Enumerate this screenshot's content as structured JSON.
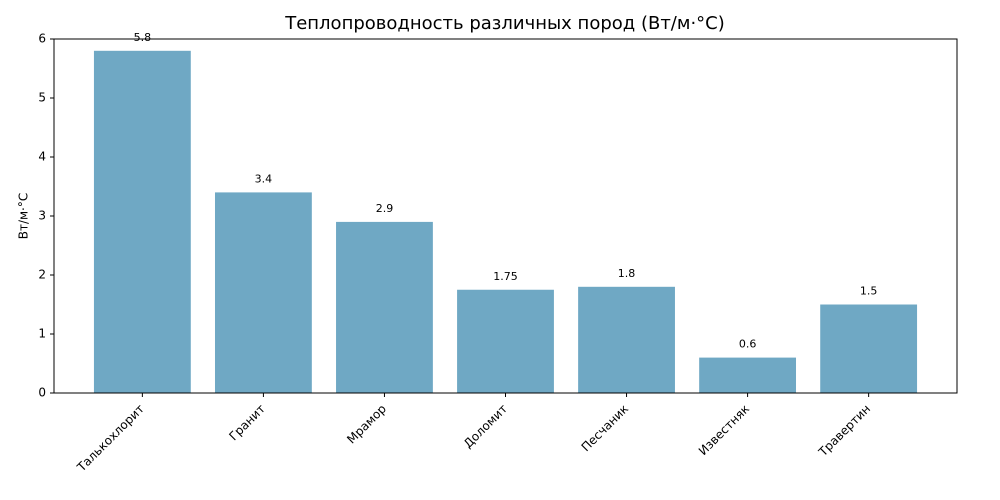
{
  "chart_data": {
    "type": "bar",
    "title": "Теплопроводность различных пород (Вт/м·°C)",
    "y_label": "Вт/м·°C",
    "categories": [
      "Талькохлорит",
      "Гранит",
      "Мрамор",
      "Доломит",
      "Песчаник",
      "Известняк",
      "Травертин"
    ],
    "values": [
      5.8,
      3.4,
      2.9,
      1.75,
      1.8,
      0.6,
      1.5
    ],
    "color": "#6fa8c4",
    "ylim": [
      0,
      6
    ],
    "yticks": [
      0,
      1,
      2,
      3,
      4,
      5,
      6
    ],
    "grid": false
  }
}
